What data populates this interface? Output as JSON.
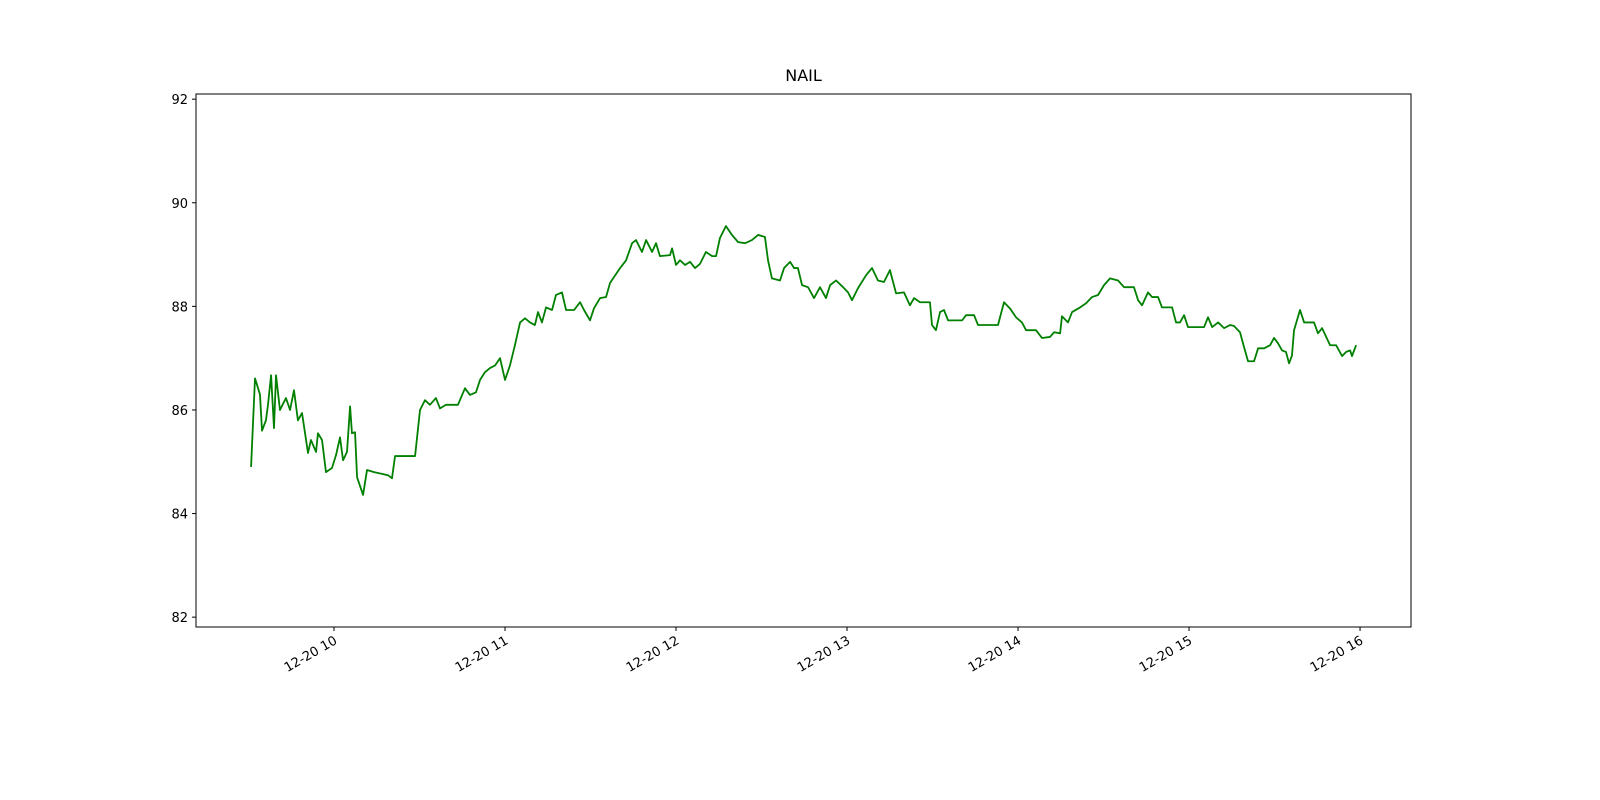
{
  "chart_data": {
    "type": "line",
    "title": "NAIL",
    "color": "#008000",
    "x": [
      9.515,
      9.538,
      9.567,
      9.579,
      9.602,
      9.614,
      9.632,
      9.649,
      9.661,
      9.684,
      9.719,
      9.743,
      9.766,
      9.789,
      9.813,
      9.848,
      9.865,
      9.895,
      9.906,
      9.93,
      9.953,
      9.988,
      10.012,
      10.035,
      10.053,
      10.076,
      10.094,
      10.105,
      10.123,
      10.135,
      10.17,
      10.193,
      10.234,
      10.316,
      10.339,
      10.357,
      10.474,
      10.503,
      10.532,
      10.561,
      10.596,
      10.62,
      10.655,
      10.69,
      10.725,
      10.766,
      10.795,
      10.83,
      10.854,
      10.883,
      10.912,
      10.942,
      10.971,
      11.0,
      11.029,
      11.058,
      11.088,
      11.117,
      11.146,
      11.175,
      11.193,
      11.216,
      11.24,
      11.275,
      11.298,
      11.333,
      11.357,
      11.404,
      11.439,
      11.462,
      11.497,
      11.52,
      11.556,
      11.591,
      11.614,
      11.673,
      11.708,
      11.743,
      11.766,
      11.801,
      11.825,
      11.86,
      11.883,
      11.906,
      11.965,
      11.977,
      12.0,
      12.023,
      12.053,
      12.082,
      12.111,
      12.14,
      12.175,
      12.211,
      12.234,
      12.257,
      12.292,
      12.327,
      12.363,
      12.404,
      12.444,
      12.48,
      12.52,
      12.538,
      12.561,
      12.608,
      12.632,
      12.667,
      12.69,
      12.713,
      12.737,
      12.772,
      12.807,
      12.842,
      12.877,
      12.901,
      12.936,
      12.971,
      13.006,
      13.029,
      13.064,
      13.111,
      13.146,
      13.181,
      13.216,
      13.251,
      13.287,
      13.333,
      13.368,
      13.392,
      13.427,
      13.485,
      13.497,
      13.52,
      13.544,
      13.567,
      13.591,
      13.673,
      13.696,
      13.743,
      13.766,
      13.883,
      13.918,
      13.953,
      13.988,
      14.023,
      14.047,
      14.105,
      14.14,
      14.187,
      14.211,
      14.246,
      14.257,
      14.292,
      14.316,
      14.363,
      14.398,
      14.433,
      14.468,
      14.503,
      14.538,
      14.585,
      14.62,
      14.678,
      14.702,
      14.725,
      14.76,
      14.784,
      14.819,
      14.842,
      14.901,
      14.924,
      14.947,
      14.971,
      14.994,
      15.088,
      15.111,
      15.135,
      15.17,
      15.205,
      15.24,
      15.263,
      15.298,
      15.322,
      15.345,
      15.38,
      15.404,
      15.439,
      15.474,
      15.497,
      15.52,
      15.544,
      15.567,
      15.585,
      15.602,
      15.614,
      15.649,
      15.673,
      15.731,
      15.754,
      15.778,
      15.825,
      15.86,
      15.895,
      15.918,
      15.942,
      15.953,
      15.977
    ],
    "values": [
      84.9,
      86.61,
      86.3,
      85.6,
      85.8,
      86.1,
      86.67,
      85.65,
      86.67,
      86.0,
      86.23,
      86.0,
      86.38,
      85.8,
      85.94,
      85.17,
      85.42,
      85.19,
      85.55,
      85.42,
      84.8,
      84.88,
      85.13,
      85.47,
      85.03,
      85.19,
      86.07,
      85.55,
      85.57,
      84.7,
      84.36,
      84.84,
      84.8,
      84.74,
      84.68,
      85.11,
      85.11,
      86.0,
      86.19,
      86.1,
      86.23,
      86.03,
      86.1,
      86.1,
      86.1,
      86.42,
      86.29,
      86.34,
      86.58,
      86.73,
      86.81,
      86.86,
      87.0,
      86.58,
      86.86,
      87.25,
      87.69,
      87.77,
      87.69,
      87.64,
      87.89,
      87.69,
      87.98,
      87.93,
      88.22,
      88.27,
      87.93,
      87.93,
      88.08,
      87.93,
      87.73,
      87.96,
      88.16,
      88.18,
      88.45,
      88.74,
      88.89,
      89.22,
      89.28,
      89.05,
      89.28,
      89.05,
      89.22,
      88.97,
      88.99,
      89.12,
      88.8,
      88.89,
      88.8,
      88.86,
      88.74,
      88.82,
      89.05,
      88.97,
      88.97,
      89.32,
      89.55,
      89.38,
      89.24,
      89.22,
      89.28,
      89.38,
      89.34,
      88.89,
      88.54,
      88.5,
      88.74,
      88.86,
      88.74,
      88.74,
      88.41,
      88.37,
      88.16,
      88.37,
      88.16,
      88.41,
      88.5,
      88.39,
      88.27,
      88.12,
      88.35,
      88.6,
      88.74,
      88.5,
      88.47,
      88.7,
      88.25,
      88.27,
      88.02,
      88.16,
      88.08,
      88.08,
      87.64,
      87.54,
      87.89,
      87.93,
      87.73,
      87.73,
      87.83,
      87.83,
      87.64,
      87.64,
      88.08,
      87.96,
      87.79,
      87.69,
      87.54,
      87.54,
      87.39,
      87.41,
      87.5,
      87.48,
      87.81,
      87.69,
      87.89,
      87.98,
      88.06,
      88.18,
      88.22,
      88.41,
      88.54,
      88.5,
      88.37,
      88.37,
      88.12,
      88.02,
      88.27,
      88.18,
      88.18,
      87.98,
      87.98,
      87.69,
      87.69,
      87.83,
      87.6,
      87.6,
      87.79,
      87.6,
      87.69,
      87.58,
      87.64,
      87.62,
      87.5,
      87.21,
      86.94,
      86.94,
      87.19,
      87.19,
      87.25,
      87.39,
      87.29,
      87.15,
      87.12,
      86.9,
      87.05,
      87.54,
      87.93,
      87.69,
      87.69,
      87.48,
      87.58,
      87.25,
      87.25,
      87.04,
      87.12,
      87.15,
      87.04,
      87.25
    ],
    "xlim": [
      9.193,
      16.298
    ],
    "xticks": [
      {
        "value": 10,
        "label": "12-20 10"
      },
      {
        "value": 11,
        "label": "12-20 11"
      },
      {
        "value": 12,
        "label": "12-20 12"
      },
      {
        "value": 13,
        "label": "12-20 13"
      },
      {
        "value": 14,
        "label": "12-20 14"
      },
      {
        "value": 15,
        "label": "12-20 15"
      },
      {
        "value": 16,
        "label": "12-20 16"
      }
    ],
    "ylim": [
      81.81,
      92.1
    ],
    "yticks": [
      82,
      84,
      86,
      88,
      90,
      92
    ]
  }
}
